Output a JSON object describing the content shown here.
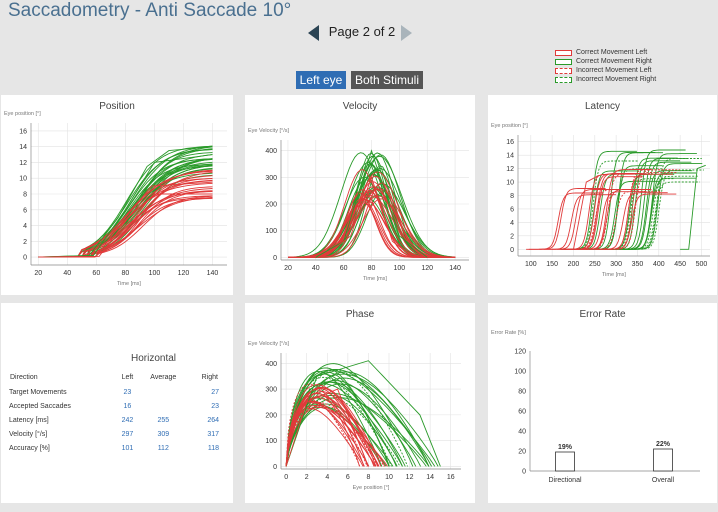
{
  "app": {
    "title": "Saccadometry - Anti Saccade 10°"
  },
  "pager": {
    "label": "Page 2 of 2"
  },
  "legend": [
    {
      "label": "Correct Movement Left",
      "color": "#e03a3a",
      "style": "solid"
    },
    {
      "label": "Correct Movement Right",
      "color": "#2a9a2a",
      "style": "solid"
    },
    {
      "label": "Incorrect Movement Left",
      "color": "#e03a3a",
      "style": "dashed"
    },
    {
      "label": "Incorrect Movement Right",
      "color": "#2a9a2a",
      "style": "dashed"
    }
  ],
  "toggles": {
    "eye": "Left eye",
    "stimuli": "Both Stimuli"
  },
  "colors": {
    "left": "#e03a3a",
    "right": "#2a9a2a",
    "accent": "#2f6db4"
  },
  "panels": {
    "position": {
      "title": "Position",
      "ylabel": "Eye position [°]",
      "xlabel": "Time [ms]"
    },
    "velocity": {
      "title": "Velocity",
      "ylabel": "Eye Velocity [°/s]",
      "xlabel": "Time [ms]"
    },
    "latency": {
      "title": "Latency",
      "ylabel": "Eye position [°]",
      "xlabel": "Time [ms]"
    },
    "phase": {
      "title": "Phase",
      "ylabel": "Eye Velocity [°/s]",
      "xlabel": "Eye position [°]"
    },
    "error": {
      "title": "Error Rate",
      "ylabel": "Error Rate [%]"
    }
  },
  "summary": {
    "heading": "Horizontal",
    "columns": [
      "Direction",
      "Left",
      "Average",
      "Right"
    ],
    "rows": [
      {
        "label": "Target Movements",
        "left": "23",
        "avg": "",
        "right": "27"
      },
      {
        "label": "Accepted Saccades",
        "left": "16",
        "avg": "",
        "right": "23"
      },
      {
        "label": "Latency [ms]",
        "left": "242",
        "avg": "255",
        "right": "264"
      },
      {
        "label": "Velocity [°/s]",
        "left": "297",
        "avg": "309",
        "right": "317"
      },
      {
        "label": "Accuracy [%]",
        "left": "101",
        "avg": "112",
        "right": "118"
      }
    ]
  },
  "chart_data": [
    {
      "type": "line",
      "title": "Position",
      "ylabel": "Eye position [°]",
      "xlabel": "Time [ms]",
      "xlim": [
        15,
        150
      ],
      "ylim": [
        -1,
        17
      ],
      "xticks": [
        20,
        40,
        60,
        80,
        100,
        120,
        140
      ],
      "yticks": [
        0,
        2,
        4,
        6,
        8,
        10,
        12,
        14,
        16
      ],
      "series": [
        {
          "color": "#2a9a2a",
          "values": [
            [
              20,
              0
            ],
            [
              55,
              0.2
            ],
            [
              75,
              5
            ],
            [
              95,
              11.5
            ],
            [
              110,
              13.5
            ],
            [
              140,
              14
            ]
          ]
        },
        {
          "color": "#2a9a2a",
          "values": [
            [
              20,
              0
            ],
            [
              58,
              0.2
            ],
            [
              80,
              6
            ],
            [
              100,
              12
            ],
            [
              140,
              13
            ]
          ]
        },
        {
          "color": "#e03a3a",
          "values": [
            [
              20,
              0
            ],
            [
              60,
              0.1
            ],
            [
              80,
              5
            ],
            [
              98,
              9
            ],
            [
              140,
              9.5
            ]
          ]
        },
        {
          "color": "#e03a3a",
          "values": [
            [
              20,
              0
            ],
            [
              62,
              0.1
            ],
            [
              82,
              5
            ],
            [
              100,
              8
            ],
            [
              140,
              8
            ]
          ]
        }
      ]
    },
    {
      "type": "line",
      "title": "Velocity",
      "ylabel": "Eye Velocity [°/s]",
      "xlabel": "Time [ms]",
      "xlim": [
        15,
        150
      ],
      "ylim": [
        -10,
        440
      ],
      "xticks": [
        20,
        40,
        60,
        80,
        100,
        120,
        140
      ],
      "yticks": [
        0,
        100,
        200,
        300,
        400
      ],
      "series": [
        {
          "color": "#2a9a2a",
          "values": [
            [
              40,
              0
            ],
            [
              60,
              60
            ],
            [
              80,
              400
            ],
            [
              100,
              80
            ],
            [
              120,
              0
            ]
          ]
        },
        {
          "color": "#e03a3a",
          "values": [
            [
              45,
              0
            ],
            [
              65,
              80
            ],
            [
              80,
              300
            ],
            [
              95,
              60
            ],
            [
              110,
              0
            ]
          ]
        }
      ]
    },
    {
      "type": "line",
      "title": "Latency",
      "ylabel": "Eye position [°]",
      "xlabel": "Time [ms]",
      "xlim": [
        70,
        520
      ],
      "ylim": [
        -1,
        17
      ],
      "xticks": [
        100,
        150,
        200,
        250,
        300,
        350,
        400,
        450,
        500
      ],
      "yticks": [
        0,
        2,
        4,
        6,
        8,
        10,
        12,
        14,
        16
      ],
      "series": [
        {
          "color": "#e03a3a",
          "values": [
            [
              150,
              0
            ],
            [
              200,
              0
            ],
            [
              230,
              10
            ],
            [
              260,
              11
            ]
          ]
        },
        {
          "color": "#2a9a2a",
          "values": [
            [
              450,
              0
            ],
            [
              470,
              0
            ],
            [
              490,
              12
            ],
            [
              510,
              12.5
            ]
          ]
        }
      ]
    },
    {
      "type": "line",
      "title": "Phase",
      "ylabel": "Eye Velocity [°/s]",
      "xlabel": "Eye position [°]",
      "xlim": [
        -0.5,
        17
      ],
      "ylim": [
        -10,
        440
      ],
      "xticks": [
        0,
        2,
        4,
        6,
        8,
        10,
        12,
        14,
        16
      ],
      "yticks": [
        0,
        100,
        200,
        300,
        400
      ],
      "series": [
        {
          "color": "#2a9a2a",
          "values": [
            [
              0,
              0
            ],
            [
              3,
              350
            ],
            [
              8,
              410
            ],
            [
              13,
              200
            ],
            [
              15,
              0
            ]
          ]
        },
        {
          "color": "#e03a3a",
          "values": [
            [
              0,
              0
            ],
            [
              2,
              250
            ],
            [
              5,
              300
            ],
            [
              8,
              0
            ]
          ]
        }
      ]
    },
    {
      "type": "bar",
      "title": "Error Rate",
      "ylabel": "Error Rate [%]",
      "categories": [
        "Directional",
        "Overall"
      ],
      "values": [
        19,
        22
      ],
      "labels": [
        "19%",
        "22%"
      ],
      "ylim": [
        0,
        120
      ],
      "yticks": [
        0,
        20,
        40,
        60,
        80,
        100,
        120
      ]
    }
  ]
}
